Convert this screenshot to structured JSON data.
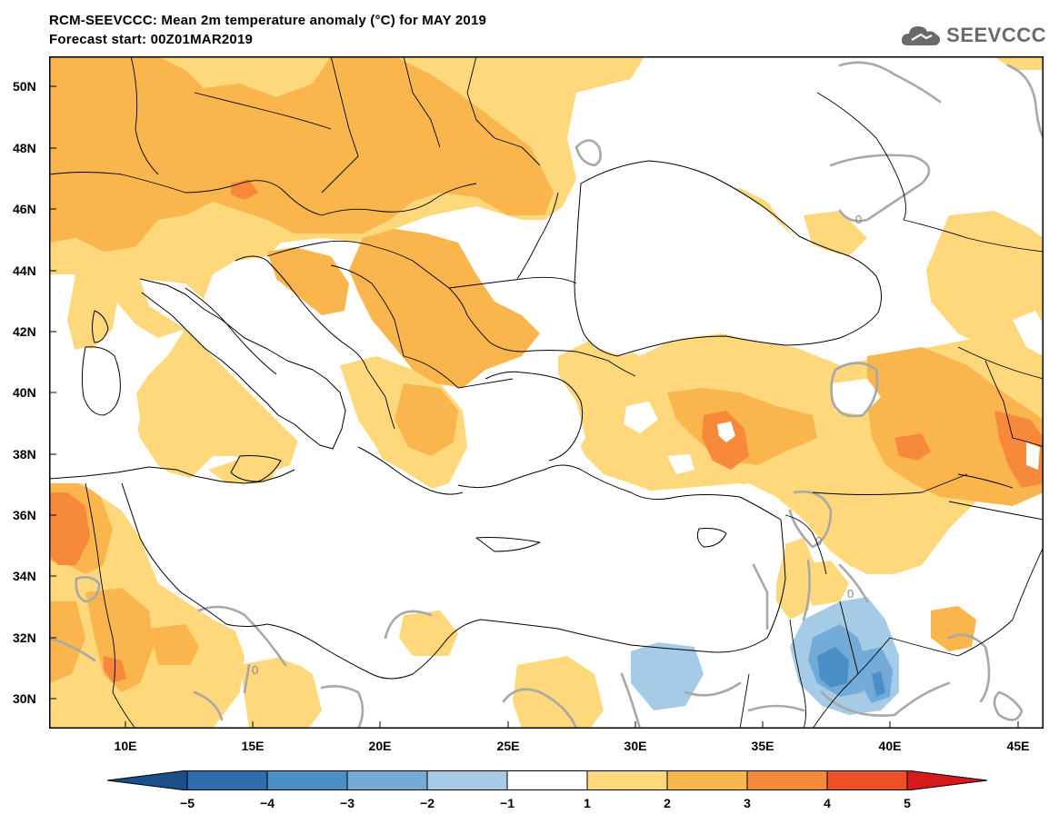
{
  "header": {
    "title_line1": "RCM-SEEVCCC: Mean 2m temperature anomaly (°C) for MAY 2019",
    "title_line2": "Forecast start: 00Z01MAR2019",
    "logo_text": "SEEVCCC"
  },
  "map": {
    "lon_range": [
      7,
      46
    ],
    "lat_range": [
      29,
      51
    ],
    "lat_ticks": [
      "50N",
      "48N",
      "46N",
      "44N",
      "42N",
      "40N",
      "38N",
      "36N",
      "34N",
      "32N",
      "30N"
    ],
    "lon_ticks": [
      "10E",
      "15E",
      "20E",
      "25E",
      "30E",
      "35E",
      "40E",
      "45E"
    ],
    "contour_label": "0"
  },
  "colorbar": {
    "tick_labels": [
      "−5",
      "−4",
      "−3",
      "−2",
      "−1",
      "1",
      "2",
      "3",
      "4",
      "5"
    ],
    "colors": [
      "#1b4f8a",
      "#2f6eae",
      "#4b8fc7",
      "#72abd8",
      "#a5cbe6",
      "#ffffff",
      "#fed87a",
      "#fbb54d",
      "#f6893a",
      "#ef5127",
      "#d7191c"
    ]
  },
  "colors": {
    "anomaly_1_2": "#fed87a",
    "anomaly_2_3": "#fbb54d",
    "anomaly_3_4": "#f6893a",
    "anomaly_neg1_neg2": "#a5cbe6",
    "anomaly_neg2_neg3": "#72abd8",
    "anomaly_neg3_neg4": "#4b8fc7",
    "zero_contour": "#a8a8a8",
    "coastline": "#000000"
  }
}
